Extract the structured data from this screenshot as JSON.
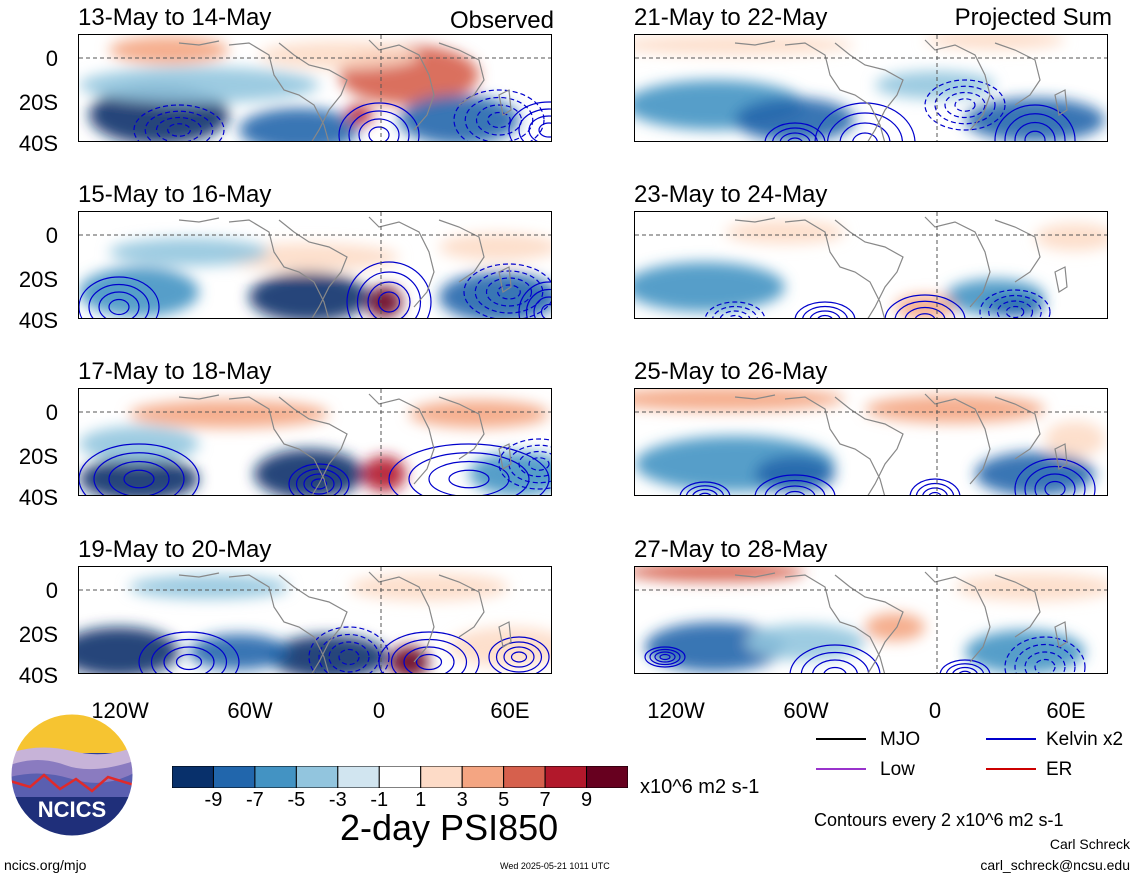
{
  "panels": [
    {
      "title": "13-May to 14-May",
      "tag": "Observed"
    },
    {
      "title": "15-May to 16-May",
      "tag": ""
    },
    {
      "title": "17-May to 18-May",
      "tag": ""
    },
    {
      "title": "19-May to 20-May",
      "tag": ""
    },
    {
      "title": "21-May to 22-May",
      "tag": "Projected Sum"
    },
    {
      "title": "23-May to 24-May",
      "tag": ""
    },
    {
      "title": "25-May to 26-May",
      "tag": ""
    },
    {
      "title": "27-May to 28-May",
      "tag": ""
    }
  ],
  "axes": {
    "lat_ticks": [
      "0",
      "20S",
      "40S"
    ],
    "lon_ticks": [
      "120W",
      "60W",
      "0",
      "60E"
    ]
  },
  "colorbar": {
    "colors": [
      "#08306b",
      "#2166ac",
      "#4393c3",
      "#92c5de",
      "#d1e5f0",
      "#ffffff",
      "#fddbc7",
      "#f4a582",
      "#d6604d",
      "#b2182b",
      "#67001f"
    ],
    "tick_labels": [
      "-9",
      "-7",
      "-5",
      "-3",
      "-1",
      "1",
      "3",
      "5",
      "7",
      "9"
    ],
    "units": "x10^6 m2 s-1"
  },
  "main_title": "2-day PSI850",
  "legend": {
    "items": [
      {
        "label": "MJO",
        "color": "#000000"
      },
      {
        "label": "Kelvin x2",
        "color": "#0000cc"
      },
      {
        "label": "Low",
        "color": "#9933cc"
      },
      {
        "label": "ER",
        "color": "#cc0000"
      }
    ],
    "contour_note": "Contours every 2 x10^6 m2 s-1"
  },
  "logo": {
    "text": "NCICS"
  },
  "footer": {
    "url": "ncics.org/mjo",
    "timestamp": "Wed 2025-05-21 1011 UTC",
    "author": "Carl Schreck",
    "email": "carl_schreck@ncsu.edu"
  }
}
